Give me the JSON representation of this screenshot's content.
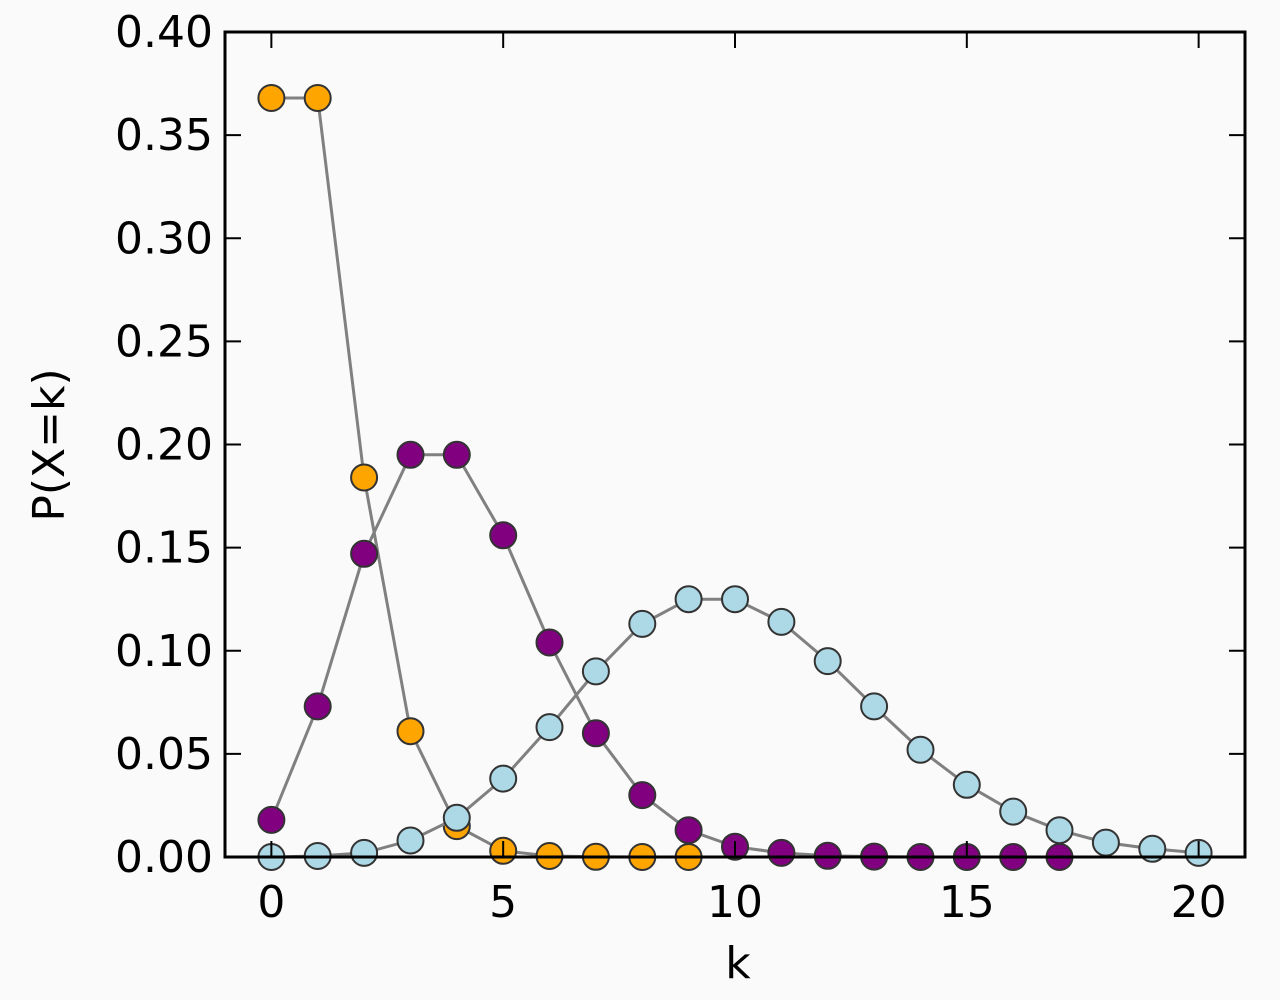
{
  "chart_data": {
    "type": "line",
    "xlabel": "k",
    "ylabel": "P(X=k)",
    "xlim": [
      -1,
      21
    ],
    "ylim": [
      0,
      0.4
    ],
    "xticks": [
      "0",
      "5",
      "10",
      "15",
      "20"
    ],
    "yticks": [
      "0.00",
      "0.05",
      "0.10",
      "0.15",
      "0.20",
      "0.25",
      "0.30",
      "0.35",
      "0.40"
    ],
    "grid": false,
    "line_color": "#808080",
    "series": [
      {
        "color": "#ffa500",
        "x": [
          0,
          1,
          2,
          3,
          4,
          5,
          6,
          7,
          8,
          9
        ],
        "values": [
          0.368,
          0.368,
          0.184,
          0.061,
          0.015,
          0.003,
          0.0005,
          0.0001,
          0.0,
          0.0
        ]
      },
      {
        "color": "#800080",
        "x": [
          0,
          1,
          2,
          3,
          4,
          5,
          6,
          7,
          8,
          9,
          10,
          11,
          12,
          13,
          14,
          15,
          16,
          17
        ],
        "values": [
          0.018,
          0.073,
          0.147,
          0.195,
          0.195,
          0.156,
          0.104,
          0.06,
          0.03,
          0.013,
          0.005,
          0.002,
          0.0006,
          0.0002,
          0.0,
          0.0,
          0.0,
          0.0
        ]
      },
      {
        "color": "#add8e6",
        "x": [
          0,
          1,
          2,
          3,
          4,
          5,
          6,
          7,
          8,
          9,
          10,
          11,
          12,
          13,
          14,
          15,
          16,
          17,
          18,
          19,
          20
        ],
        "values": [
          0.0,
          0.0005,
          0.002,
          0.008,
          0.019,
          0.038,
          0.063,
          0.09,
          0.113,
          0.125,
          0.125,
          0.114,
          0.095,
          0.073,
          0.052,
          0.035,
          0.022,
          0.013,
          0.007,
          0.004,
          0.002
        ]
      }
    ]
  }
}
